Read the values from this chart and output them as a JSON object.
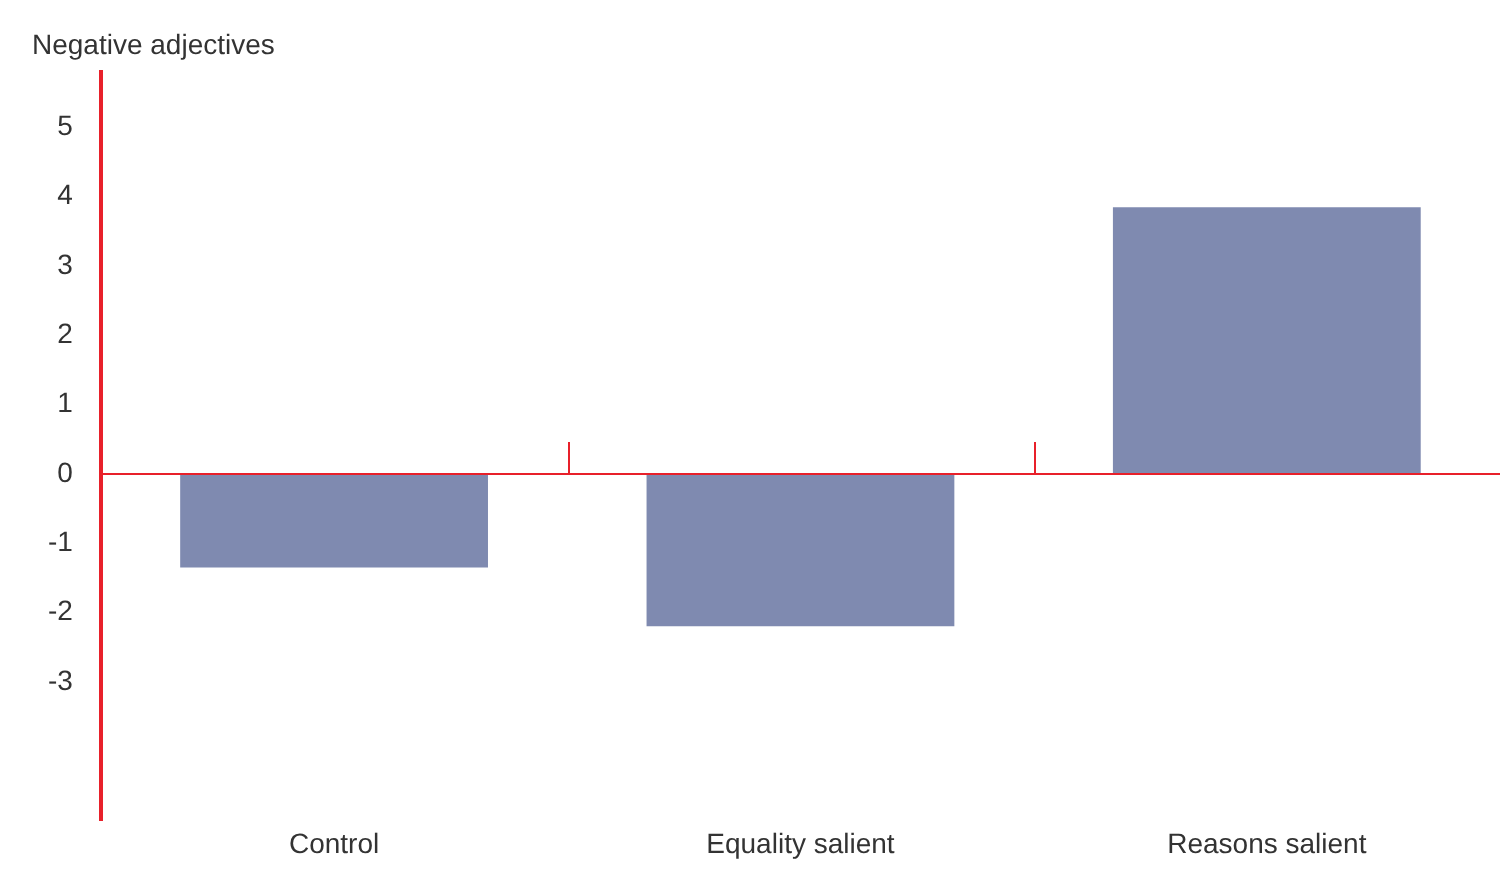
{
  "chart_data": {
    "type": "bar",
    "ylabel": "Negative adjectives",
    "categories": [
      "Control",
      "Equality salient",
      "Reasons salient"
    ],
    "values": [
      -1.35,
      -2.2,
      3.85
    ],
    "color": "#7f8ab0",
    "ylim": [
      -5,
      5.8
    ],
    "yticks": [
      -3,
      -2,
      -1,
      0,
      1,
      2,
      3,
      4,
      5
    ],
    "grid": false,
    "legend": false,
    "ref_lines": [
      {
        "axis": "y",
        "value": 0,
        "color": "#e8202a"
      }
    ]
  }
}
